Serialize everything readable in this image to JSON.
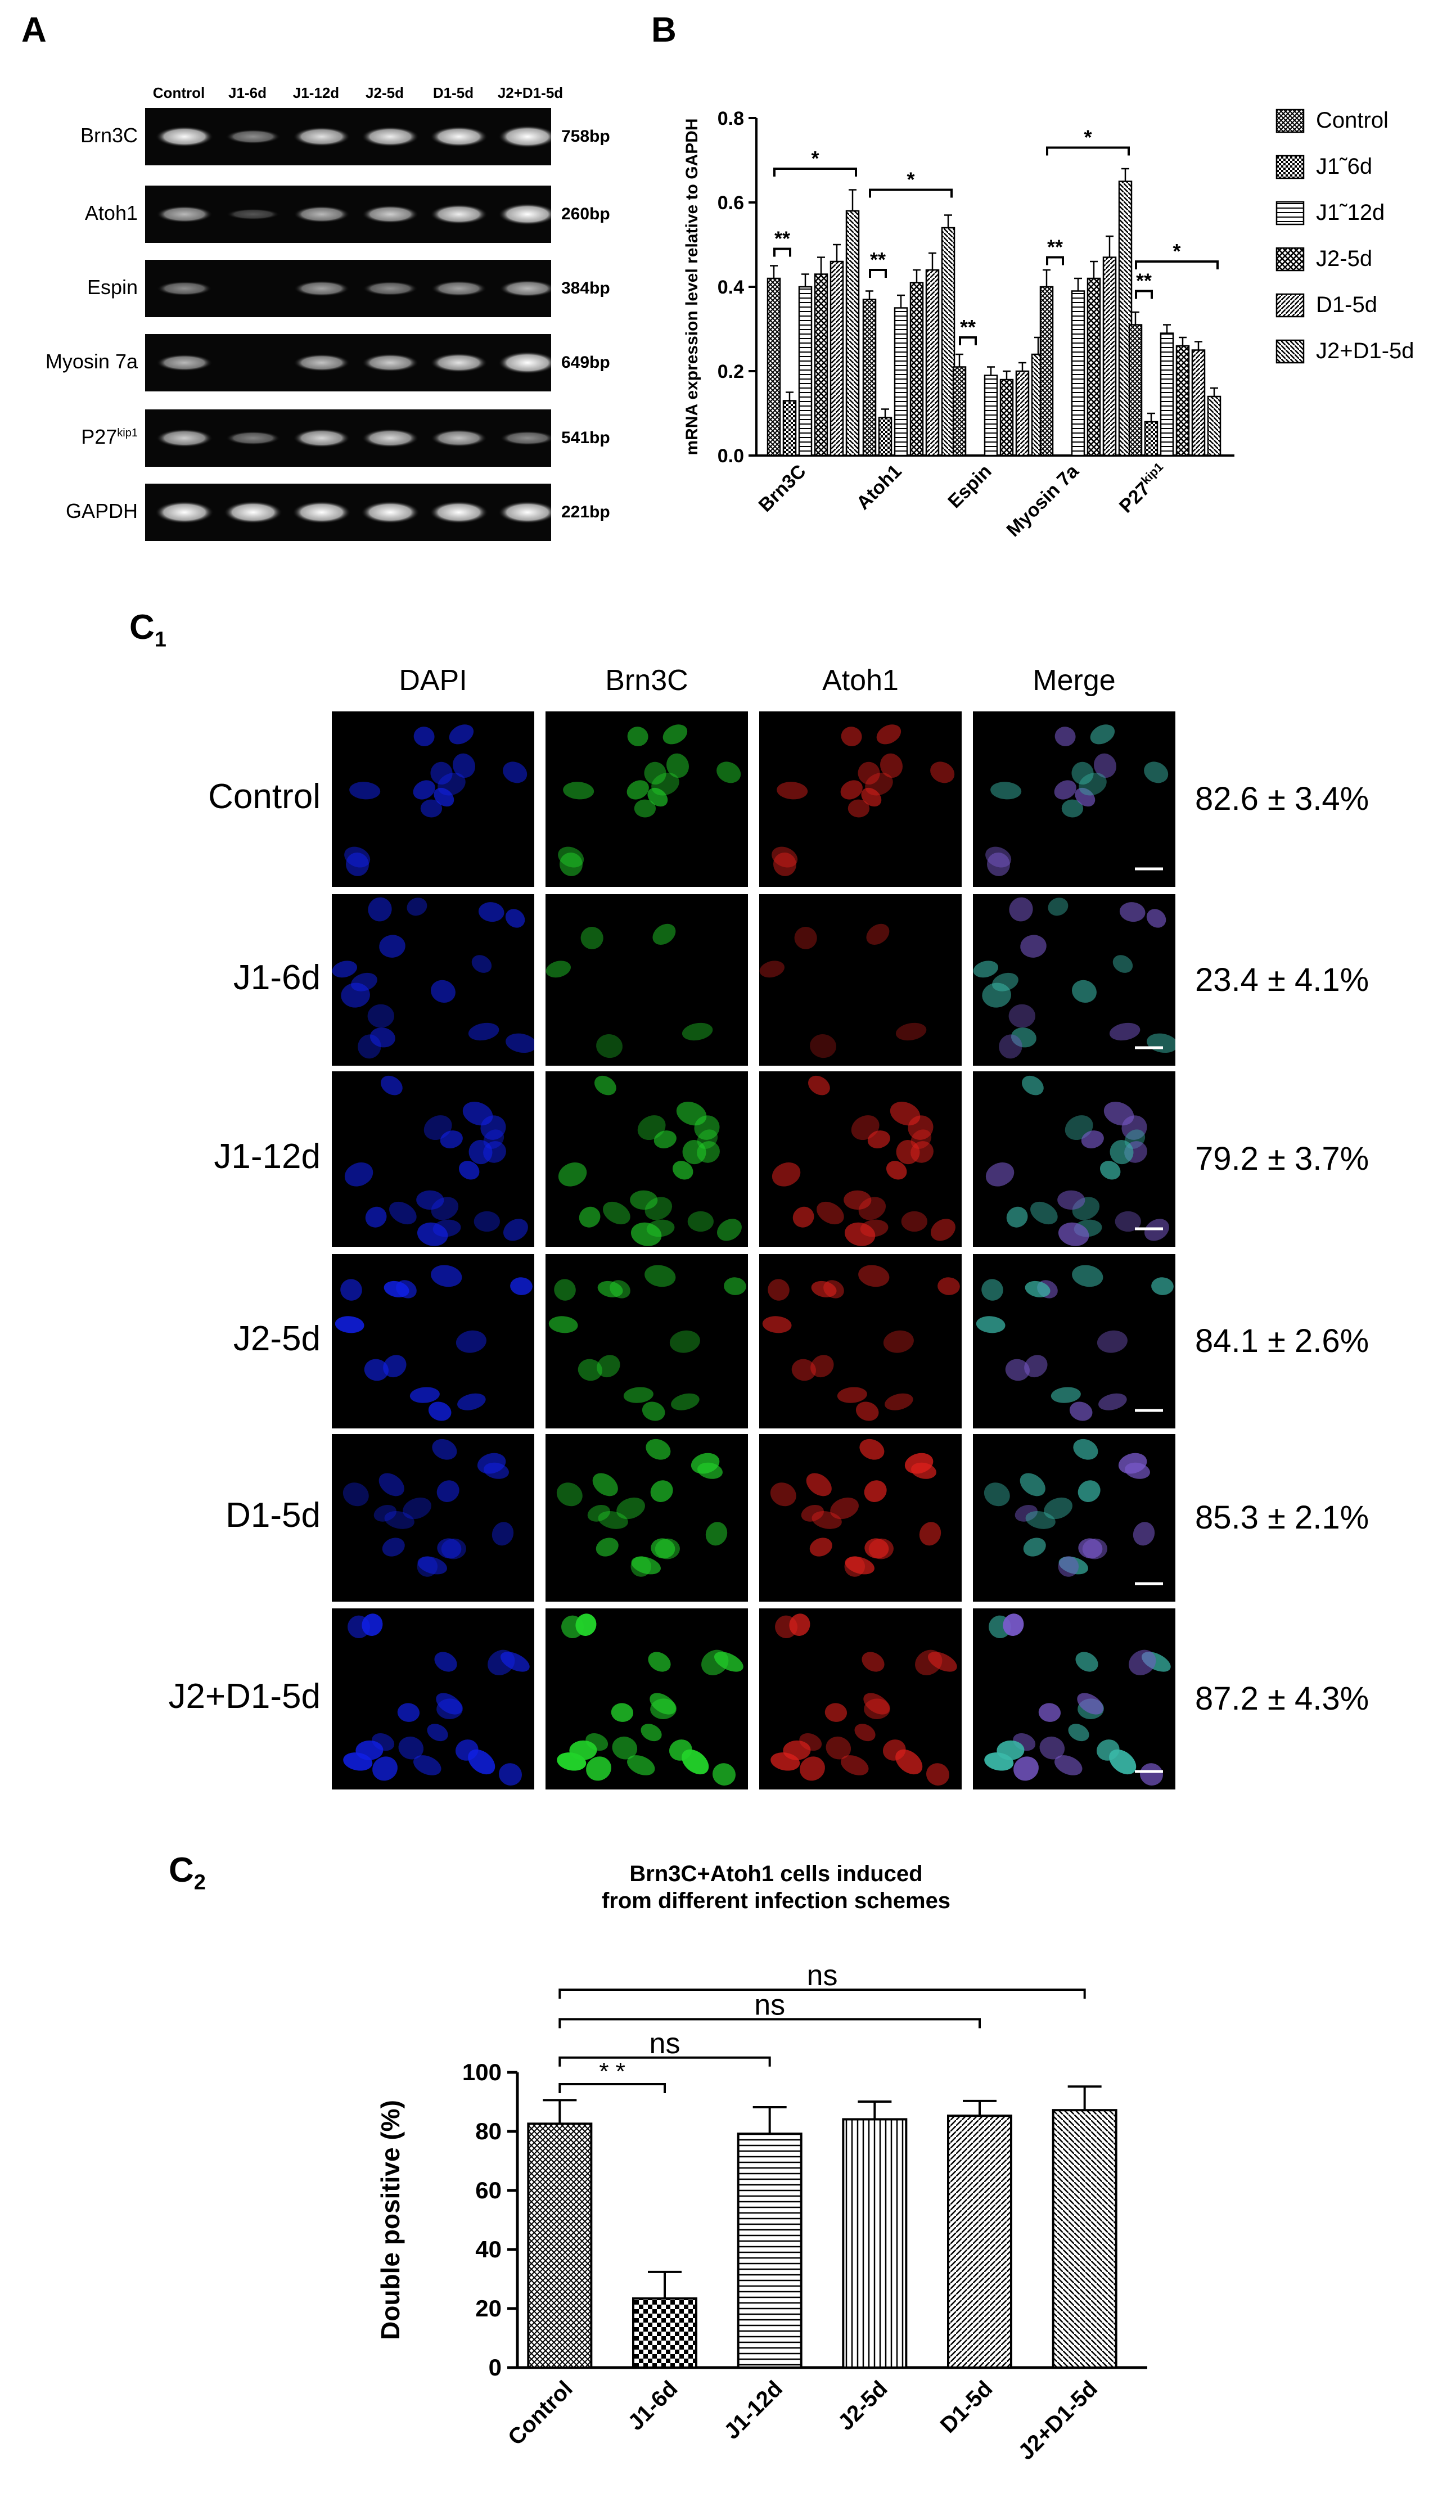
{
  "panels": {
    "a": "A",
    "b": "B",
    "c1": "C",
    "c1_sub": "1",
    "c2": "C",
    "c2_sub": "2"
  },
  "gel": {
    "lanes": [
      "Control",
      "J1-6d",
      "J1-12d",
      "J2-5d",
      "D1-5d",
      "J2+D1-5d"
    ],
    "rows": [
      {
        "gene": "Brn3C",
        "size": "758bp",
        "intensity": [
          0.85,
          0.35,
          0.75,
          0.8,
          0.85,
          1.0
        ]
      },
      {
        "gene": "Atoh1",
        "size": "260bp",
        "intensity": [
          0.55,
          0.08,
          0.55,
          0.65,
          0.8,
          0.95
        ]
      },
      {
        "gene": "Espin",
        "size": "384bp",
        "intensity": [
          0.35,
          0.0,
          0.45,
          0.35,
          0.45,
          0.55
        ]
      },
      {
        "gene": "Myosin 7a",
        "size": "649bp",
        "intensity": [
          0.55,
          0.0,
          0.6,
          0.65,
          0.75,
          1.0
        ]
      },
      {
        "gene": "P27",
        "gene_sup": "kip1",
        "size": "541bp",
        "intensity": [
          0.65,
          0.3,
          0.7,
          0.7,
          0.6,
          0.35
        ]
      },
      {
        "gene": "GAPDH",
        "size": "221bp",
        "intensity": [
          1.0,
          1.0,
          1.0,
          1.0,
          1.0,
          1.0
        ]
      }
    ]
  },
  "chart_data": [
    {
      "type": "bar",
      "ylabel": "mRNA expression level relative to GAPDH",
      "ylim": [
        0,
        0.8
      ],
      "yticks": [
        "0.0",
        "0.2",
        "0.4",
        "0.6",
        "0.8"
      ],
      "categories": [
        "Brn3C",
        "Atoh1",
        "Espin",
        "Myosin 7a",
        "P27kip1"
      ],
      "legend_position": "right",
      "series": [
        {
          "name": "Control",
          "values": [
            0.42,
            0.37,
            0.21,
            0.4,
            0.31
          ],
          "errors": [
            0.03,
            0.02,
            0.03,
            0.04,
            0.03
          ]
        },
        {
          "name": "J1-6d",
          "values": [
            0.13,
            0.09,
            0.0,
            0.0,
            0.08
          ],
          "errors": [
            0.02,
            0.02,
            0.0,
            0.0,
            0.02
          ]
        },
        {
          "name": "J1-12d",
          "values": [
            0.4,
            0.35,
            0.19,
            0.39,
            0.29
          ],
          "errors": [
            0.03,
            0.03,
            0.02,
            0.03,
            0.02
          ]
        },
        {
          "name": "J2-5d",
          "values": [
            0.43,
            0.41,
            0.18,
            0.42,
            0.26
          ],
          "errors": [
            0.04,
            0.03,
            0.02,
            0.04,
            0.02
          ]
        },
        {
          "name": "D1-5d",
          "values": [
            0.46,
            0.44,
            0.2,
            0.47,
            0.25
          ],
          "errors": [
            0.04,
            0.04,
            0.02,
            0.05,
            0.02
          ]
        },
        {
          "name": "J2+D1-5d",
          "values": [
            0.58,
            0.54,
            0.24,
            0.65,
            0.14
          ],
          "errors": [
            0.05,
            0.03,
            0.04,
            0.03,
            0.02
          ]
        }
      ],
      "legend_labels": [
        "Control",
        "J1˜6d",
        "J1˜12d",
        "J2-5d",
        "D1-5d",
        "J2+D1-5d"
      ],
      "significance": [
        "**",
        "*",
        "**",
        "*",
        "**",
        "**",
        "*",
        "**",
        "*"
      ]
    },
    {
      "type": "bar",
      "title": "Brn3C+Atoh1 cells induced from different infection schemes",
      "title_lines": [
        "Brn3C+Atoh1 cells induced",
        "from different infection schemes"
      ],
      "ylabel": "Double positive (%)",
      "ylim": [
        0,
        100
      ],
      "yticks": [
        "0",
        "20",
        "40",
        "60",
        "80",
        "100"
      ],
      "categories": [
        "Control",
        "J1-6d",
        "J1-12d",
        "J2-5d",
        "D1-5d",
        "J2+D1-5d"
      ],
      "values": [
        82.6,
        23.4,
        79.2,
        84.1,
        85.3,
        87.2
      ],
      "errors": [
        8.0,
        9.0,
        9.0,
        6.0,
        5.0,
        8.0
      ],
      "significance": [
        {
          "label": "* *",
          "from": "Control",
          "to": "J1-6d"
        },
        {
          "label": "ns",
          "from": "Control",
          "to": "J1-12d"
        },
        {
          "label": "ns",
          "from": "Control",
          "to": "D1-5d"
        },
        {
          "label": "ns",
          "from": "Control",
          "to": "J2+D1-5d"
        }
      ]
    }
  ],
  "immuno": {
    "columns": [
      "DAPI",
      "Brn3C",
      "Atoh1",
      "Merge"
    ],
    "rows": [
      {
        "label": "Control",
        "percent": "82.6 ± 3.4%"
      },
      {
        "label": "J1-6d",
        "percent": "23.4 ± 4.1%"
      },
      {
        "label": "J1-12d",
        "percent": "79.2 ± 3.7%"
      },
      {
        "label": "J2-5d",
        "percent": "84.1 ± 2.6%"
      },
      {
        "label": "D1-5d",
        "percent": "85.3 ± 2.1%"
      },
      {
        "label": "J2+D1-5d",
        "percent": "87.2 ± 4.3%"
      }
    ]
  }
}
